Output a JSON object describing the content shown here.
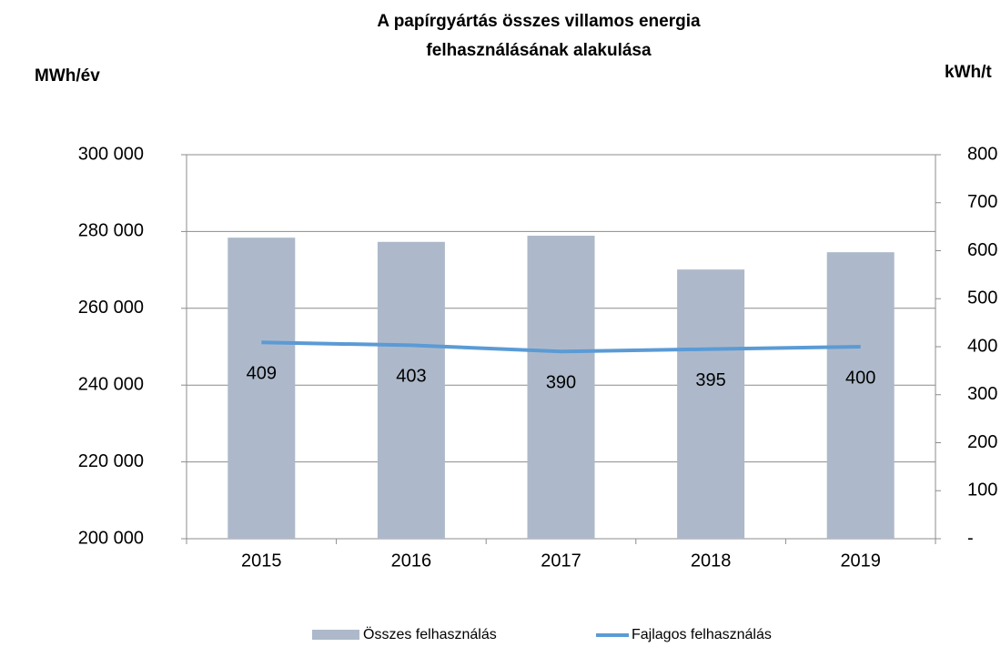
{
  "chart_data": {
    "type": "bar",
    "title": [
      "A papírgyártás összes villamos energia",
      "felhasználásának alakulása"
    ],
    "y_label": "MWh/év",
    "y2_label": "kWh/t",
    "categories": [
      "2015",
      "2016",
      "2017",
      "2018",
      "2019"
    ],
    "series": [
      {
        "name": "Összes felhasználás",
        "type": "bar",
        "color": "#adb9ca",
        "values": [
          278400,
          277300,
          278900,
          270100,
          274600
        ]
      },
      {
        "name": "Fajlagos felhasználás",
        "type": "line",
        "axis": "y2",
        "color": "#5b9bd5",
        "values": [
          409,
          403,
          390,
          395,
          400
        ]
      }
    ],
    "ylim": [
      200000,
      300000
    ],
    "yticks": [
      {
        "value": 200000,
        "label": "200 000"
      },
      {
        "value": 220000,
        "label": "220 000"
      },
      {
        "value": 240000,
        "label": "240 000"
      },
      {
        "value": 260000,
        "label": "260 000"
      },
      {
        "value": 280000,
        "label": "280 000"
      },
      {
        "value": 300000,
        "label": "300 000"
      }
    ],
    "y2lim": [
      0,
      800
    ],
    "y2ticks": [
      {
        "value": 0,
        "label": "-"
      },
      100,
      200,
      300,
      400,
      500,
      600,
      700,
      800
    ],
    "grid": true,
    "legend": "bottom"
  }
}
